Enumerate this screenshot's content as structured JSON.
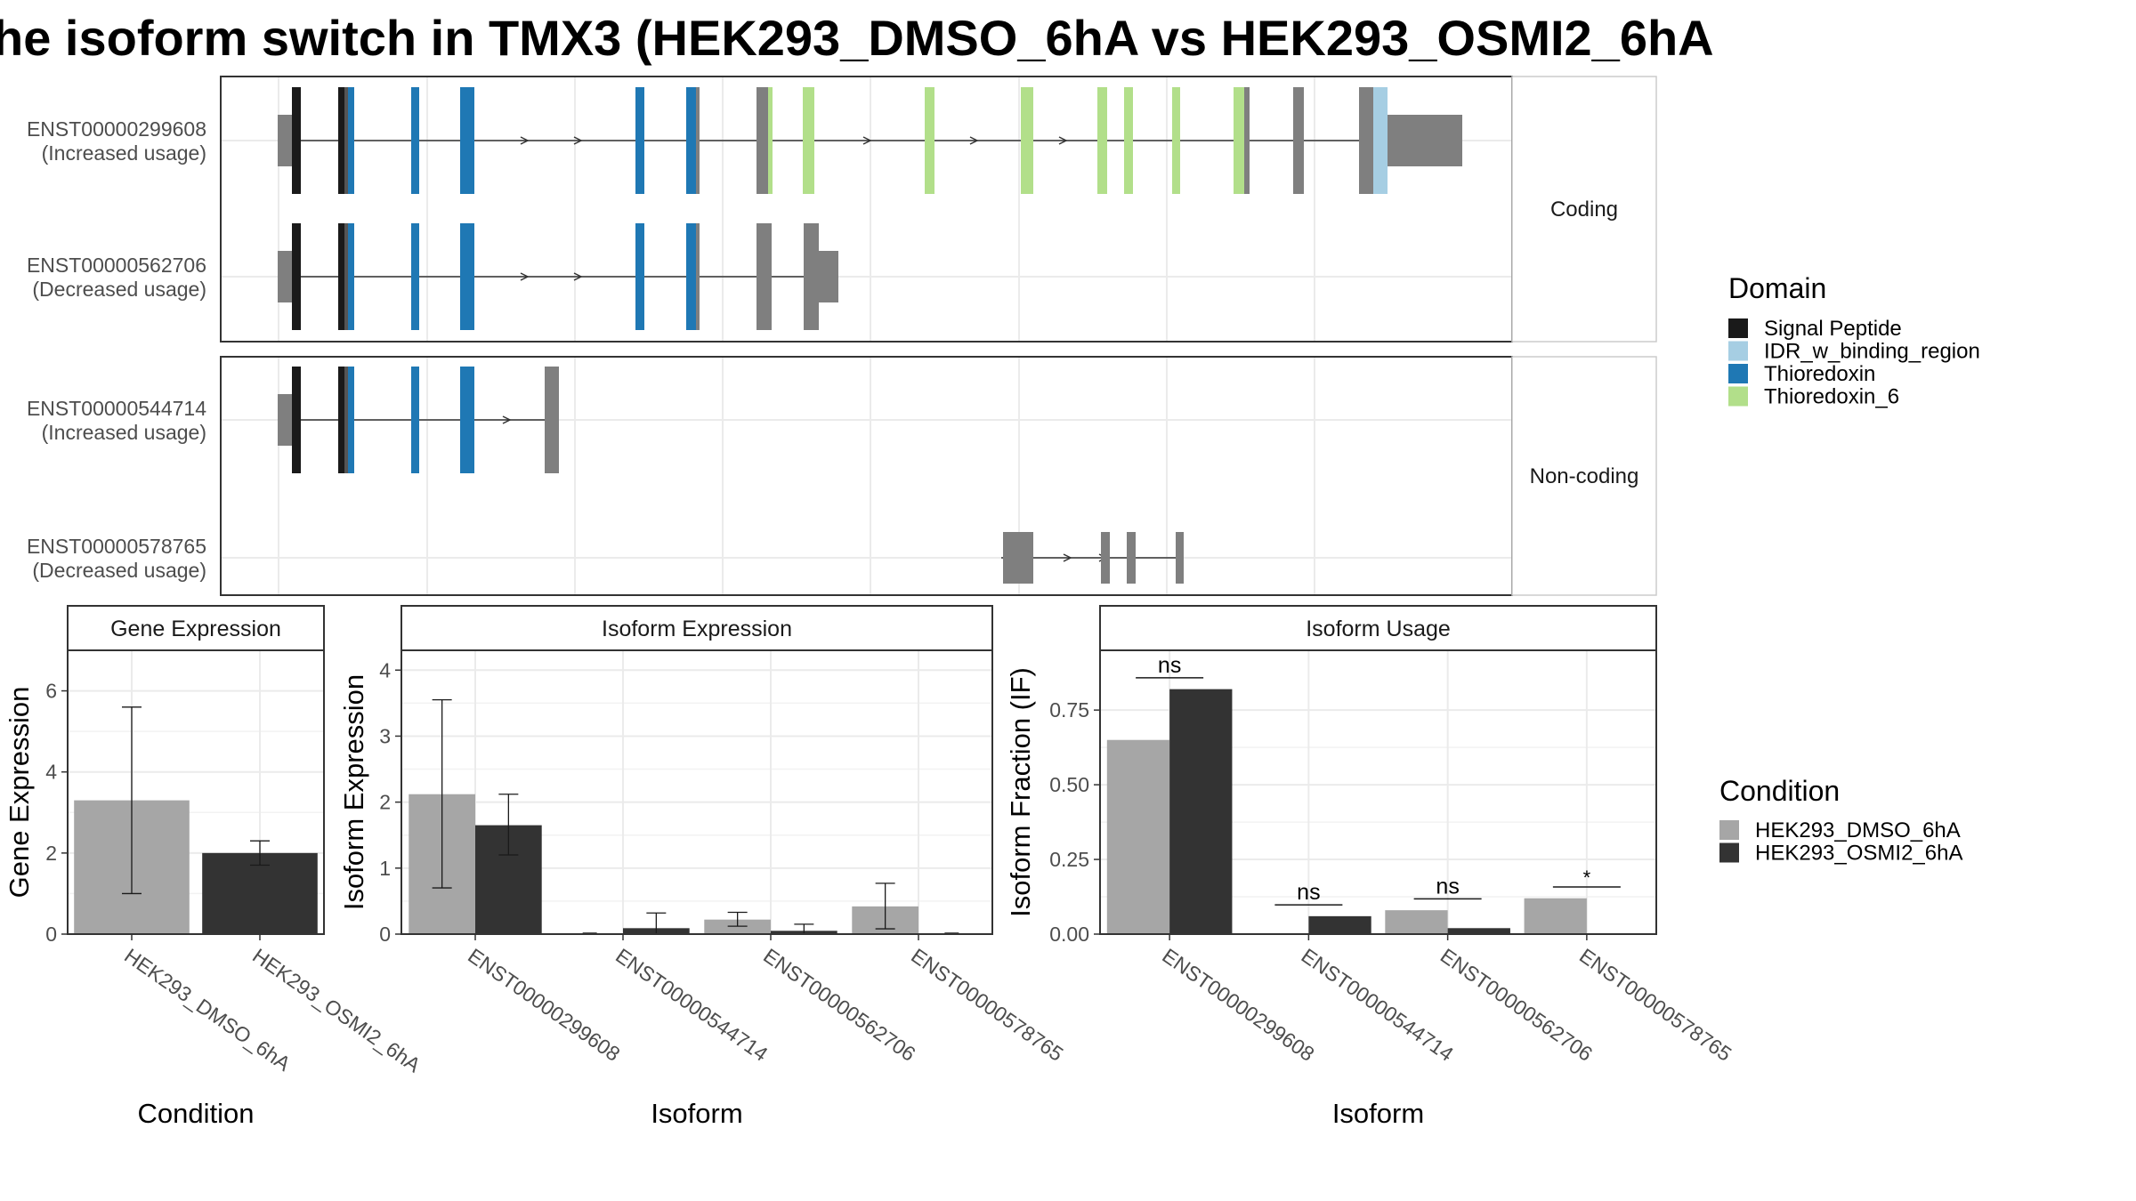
{
  "title": "he isoform switch in TMX3 (HEK293_DMSO_6hA vs HEK293_OSMI2_6hA",
  "colors": {
    "signal_peptide": "#1a1a1a",
    "idr": "#a6cee3",
    "thioredoxin": "#1f78b4",
    "thioredoxin6": "#b2df8a",
    "utr_grey": "#7f7f7f",
    "dmso": "#a6a6a6",
    "osmi2": "#333333",
    "grid": "#ebebeb"
  },
  "structure": {
    "facets": [
      "Coding",
      "Non-coding"
    ],
    "isoforms": [
      {
        "id": "ENST00000299608",
        "usage": "(Increased usage)",
        "facet": "Coding"
      },
      {
        "id": "ENST00000562706",
        "usage": "(Decreased usage)",
        "facet": "Coding"
      },
      {
        "id": "ENST00000544714",
        "usage": "(Increased usage)",
        "facet": "Non-coding"
      },
      {
        "id": "ENST00000578765",
        "usage": "(Decreased usage)",
        "facet": "Non-coding"
      }
    ]
  },
  "legend_domain": {
    "title": "Domain",
    "items": [
      {
        "label": "Signal Peptide",
        "color": "#1a1a1a"
      },
      {
        "label": "IDR_w_binding_region",
        "color": "#a6cee3"
      },
      {
        "label": "Thioredoxin",
        "color": "#1f78b4"
      },
      {
        "label": "Thioredoxin_6",
        "color": "#b2df8a"
      }
    ]
  },
  "legend_condition": {
    "title": "Condition",
    "items": [
      {
        "label": "HEK293_DMSO_6hA",
        "color": "#a6a6a6"
      },
      {
        "label": "HEK293_OSMI2_6hA",
        "color": "#333333"
      }
    ]
  },
  "chart_data": [
    {
      "type": "bar",
      "title": "Gene Expression",
      "xlabel": "Condition",
      "ylabel": "Gene Expression",
      "ylim": [
        0,
        7
      ],
      "yticks": [
        0,
        2,
        4,
        6
      ],
      "categories": [
        "HEK293_DMSO_6hA",
        "HEK293_OSMI2_6hA"
      ],
      "values": [
        3.3,
        2.0
      ],
      "error_low": [
        1.0,
        1.7
      ],
      "error_high": [
        5.6,
        2.3
      ]
    },
    {
      "type": "bar",
      "title": "Isoform Expression",
      "xlabel": "Isoform",
      "ylabel": "Isoform Expression",
      "ylim": [
        0,
        4.3
      ],
      "yticks": [
        0,
        1,
        2,
        3,
        4
      ],
      "categories": [
        "ENST00000299608",
        "ENST00000544714",
        "ENST00000562706",
        "ENST00000578765"
      ],
      "series": [
        {
          "name": "HEK293_DMSO_6hA",
          "values": [
            2.12,
            0.0,
            0.22,
            0.42
          ],
          "error_low": [
            0.7,
            0.0,
            0.12,
            0.08
          ],
          "error_high": [
            3.55,
            0.0,
            0.33,
            0.77
          ]
        },
        {
          "name": "HEK293_OSMI2_6hA",
          "values": [
            1.65,
            0.09,
            0.05,
            0.0
          ],
          "error_low": [
            1.2,
            0.0,
            0.0,
            0.0
          ],
          "error_high": [
            2.12,
            0.32,
            0.15,
            0.0
          ]
        }
      ]
    },
    {
      "type": "bar",
      "title": "Isoform Usage",
      "xlabel": "Isoform",
      "ylabel": "Isoform Fraction (IF)",
      "ylim": [
        0,
        0.95
      ],
      "yticks": [
        0.0,
        0.25,
        0.5,
        0.75
      ],
      "ytick_labels": [
        "0.00",
        "0.25",
        "0.50",
        "0.75"
      ],
      "categories": [
        "ENST00000299608",
        "ENST00000544714",
        "ENST00000562706",
        "ENST00000578765"
      ],
      "series": [
        {
          "name": "HEK293_DMSO_6hA",
          "values": [
            0.65,
            0.0,
            0.08,
            0.12
          ]
        },
        {
          "name": "HEK293_OSMI2_6hA",
          "values": [
            0.82,
            0.06,
            0.02,
            0.0
          ]
        }
      ],
      "significance": [
        "ns",
        "ns",
        "ns",
        "*"
      ]
    }
  ]
}
